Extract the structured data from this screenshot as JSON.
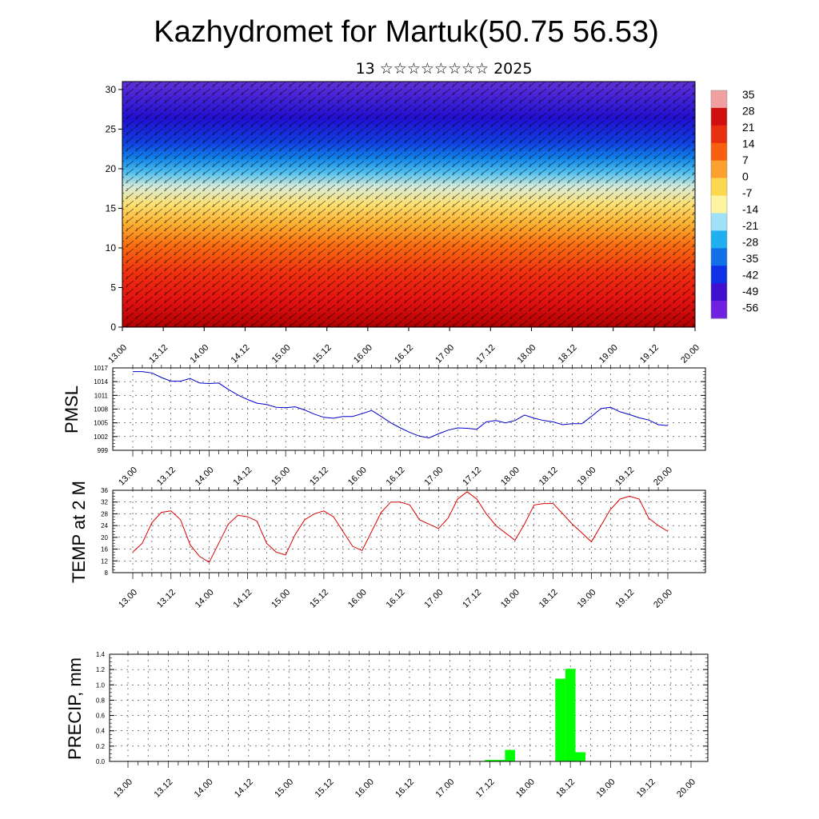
{
  "figure": {
    "title": "Kazhydromet for Martuk(50.75 56.53)",
    "subtitle": "13 ☆☆☆☆☆☆☆☆ 2025"
  },
  "time_axis_labels": [
    "13.00",
    "13.12",
    "14.00",
    "14.12",
    "15.00",
    "15.12",
    "16.00",
    "16.12",
    "17.00",
    "17.12",
    "18.00",
    "18.12",
    "19.00",
    "19.12",
    "20.00"
  ],
  "colorbar": {
    "labels": [
      "35",
      "28",
      "21",
      "14",
      "7",
      "0",
      "-7",
      "-14",
      "-21",
      "-28",
      "-35",
      "-42",
      "-49",
      "-56"
    ],
    "colors": [
      "#f0a0a0",
      "#d01010",
      "#e83010",
      "#f86010",
      "#fca030",
      "#fcd850",
      "#fcf4a0",
      "#a0e0f8",
      "#20b0f0",
      "#1070e8",
      "#1030e8",
      "#4010d0",
      "#7020e0"
    ]
  },
  "chart_data": [
    {
      "type": "heatmap",
      "title": "",
      "description": "vertical cross-section of temperature with wind barbs",
      "x": [
        "13.00",
        "13.12",
        "14.00",
        "14.12",
        "15.00",
        "15.12",
        "16.00",
        "16.12",
        "17.00",
        "17.12",
        "18.00",
        "18.12",
        "19.00",
        "19.12",
        "20.00"
      ],
      "ylim": [
        0,
        31
      ],
      "yticks": [
        "0",
        "5",
        "10",
        "15",
        "20",
        "25",
        "30"
      ],
      "levels": [
        0,
        5,
        10,
        15,
        20,
        25,
        30
      ],
      "values_at_levels": [
        30,
        20,
        5,
        -10,
        -35,
        -50,
        -55
      ]
    },
    {
      "type": "line",
      "ylabel": "PMSL",
      "ylim": [
        999,
        1017
      ],
      "yticks": [
        "999",
        "1002",
        "1005",
        "1008",
        "1011",
        "1014",
        "1017"
      ],
      "x_step_hours": 3,
      "series": [
        {
          "color": "#0000cc",
          "values": [
            1016.2,
            1016.2,
            1015.9,
            1014.9,
            1014.1,
            1014.1,
            1014.7,
            1013.7,
            1013.6,
            1013.7,
            1012.3,
            1011.1,
            1010.1,
            1009.3,
            1009.0,
            1008.4,
            1008.3,
            1008.5,
            1007.8,
            1006.9,
            1006.2,
            1006.0,
            1006.4,
            1006.4,
            1007.0,
            1007.7,
            1006.4,
            1005.0,
            1003.9,
            1002.9,
            1002.1,
            1001.7,
            1002.6,
            1003.4,
            1003.9,
            1003.8,
            1003.6,
            1005.2,
            1005.5,
            1005.0,
            1005.5,
            1006.7,
            1006.0,
            1005.5,
            1005.2,
            1004.6,
            1004.8,
            1004.8,
            1006.4,
            1008.1,
            1008.4,
            1007.4,
            1006.8,
            1006.1,
            1005.6,
            1004.6,
            1004.4
          ]
        }
      ]
    },
    {
      "type": "line",
      "ylabel": "TEMP at 2 M",
      "ylim": [
        8,
        36
      ],
      "yticks": [
        "8",
        "12",
        "16",
        "20",
        "24",
        "28",
        "32",
        "36"
      ],
      "x_step_hours": 3,
      "series": [
        {
          "color": "#dd0000",
          "values": [
            15,
            18,
            25,
            28.5,
            29,
            26,
            17.5,
            13.5,
            11.5,
            18,
            24.5,
            27.5,
            27,
            25.5,
            18,
            15,
            14,
            21,
            26,
            28,
            29,
            27,
            22,
            17,
            15.5,
            22,
            28.5,
            32,
            32,
            31,
            26,
            24.5,
            23,
            26.5,
            33,
            35.5,
            33,
            28,
            24,
            21.5,
            19,
            24.5,
            31,
            31.5,
            31.5,
            28,
            24.5,
            21.5,
            18.5,
            24,
            29.5,
            33,
            34,
            33,
            26.5,
            24,
            22
          ]
        }
      ]
    },
    {
      "type": "bar",
      "ylabel": "PRECIP, mm",
      "ylim": [
        0,
        1.4
      ],
      "yticks": [
        "0.0",
        "0.2",
        "0.4",
        "0.6",
        "0.8",
        "1.0",
        "1.2",
        "1.4"
      ],
      "x_step_hours": 3,
      "color": "#00ff00",
      "bars": [
        {
          "step": 36,
          "value": 0.02
        },
        {
          "step": 37,
          "value": 0.02
        },
        {
          "step": 38,
          "value": 0.15
        },
        {
          "step": 43,
          "value": 1.08
        },
        {
          "step": 44,
          "value": 1.21
        },
        {
          "step": 45,
          "value": 0.12
        }
      ]
    }
  ]
}
